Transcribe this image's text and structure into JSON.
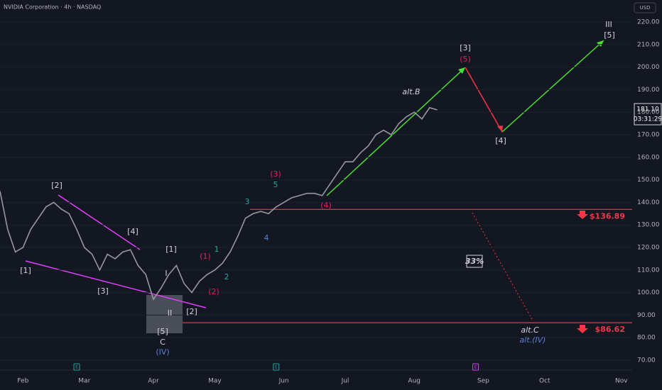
{
  "chart_data": {
    "type": "line",
    "title": "NVIDIA Corporation · 4h · NASDAQ",
    "currency": "USD",
    "last_price": {
      "value": 181.1,
      "label": "181.10"
    },
    "countdown": "03:31:29",
    "ratio_label": "33%",
    "earnings_marker": "E",
    "categories": [
      null,
      null,
      null,
      "Feb",
      null,
      null,
      null,
      null,
      null,
      null,
      null,
      "Mar",
      null,
      null,
      null,
      null,
      null,
      null,
      null,
      null,
      "Apr",
      null,
      null,
      null,
      null,
      null,
      null,
      null,
      "May",
      null,
      null,
      null,
      null,
      null,
      null,
      null,
      null,
      "Jun",
      null,
      null,
      null,
      null,
      null,
      null,
      null,
      "Jul",
      null,
      null,
      null,
      null,
      null,
      null,
      null,
      null,
      "Aug",
      null,
      null,
      null,
      null,
      null,
      null,
      null,
      null,
      "Sep",
      null,
      null,
      null,
      null,
      null,
      null,
      null,
      "Oct",
      null,
      null,
      null,
      null,
      null,
      null,
      null,
      null,
      null,
      "Nov",
      null
    ],
    "series": [
      {
        "color": "#9598a1",
        "values": [
          145,
          128,
          118,
          120,
          128,
          133,
          138,
          140,
          137,
          135,
          128,
          120,
          117,
          110,
          117,
          115,
          118,
          119,
          112,
          108,
          97,
          102,
          108,
          112,
          104,
          100,
          105,
          108,
          110,
          113,
          118,
          125,
          133,
          135,
          136,
          135,
          138,
          140,
          142,
          143,
          144,
          144,
          143,
          148,
          153,
          158,
          158,
          162,
          165,
          170,
          172,
          170,
          175,
          178,
          180,
          177,
          182,
          181,
          null,
          null,
          null,
          null,
          null,
          null,
          null,
          null,
          null,
          null,
          null,
          null,
          null,
          null,
          null,
          null,
          null,
          null,
          null,
          null,
          null,
          null,
          null,
          null,
          null
        ]
      }
    ],
    "levels": [
      {
        "value": 136.89,
        "label": "$136.89",
        "color": "#f23645"
      },
      {
        "value": 86.62,
        "label": "$86.62",
        "color": "#f23645"
      }
    ],
    "ylim": [
      70,
      220
    ],
    "yticks": [
      {
        "value": 70,
        "label": "70.00"
      },
      {
        "value": 80,
        "label": "80.00"
      },
      {
        "value": 90,
        "label": "90.00"
      },
      {
        "value": 100,
        "label": "100.00"
      },
      {
        "value": 110,
        "label": "110.00"
      },
      {
        "value": 120,
        "label": "120.00"
      },
      {
        "value": 130,
        "label": "130.00"
      },
      {
        "value": 140,
        "label": "140.00"
      },
      {
        "value": 150,
        "label": "150.00"
      },
      {
        "value": 160,
        "label": "160.00"
      },
      {
        "value": 170,
        "label": "170.00"
      },
      {
        "value": 180,
        "label": "180.00"
      },
      {
        "value": 190,
        "label": "190.00"
      },
      {
        "value": 200,
        "label": "200.00"
      },
      {
        "value": 210,
        "label": "210.00"
      },
      {
        "value": 220,
        "label": "220.00"
      }
    ],
    "annotations": [
      "[2]",
      "[1]",
      "[3]",
      "[4]",
      "[1]",
      "I",
      "II",
      "[2]",
      "[5]",
      "C",
      "(IV)",
      "(1)",
      "(2)",
      "1",
      "2",
      "3",
      "4",
      "5",
      "(3)",
      "(4)",
      "alt.B",
      "[3]",
      "(5)",
      "[4]",
      "III",
      "[5]",
      "alt.C",
      "alt.(IV)"
    ]
  }
}
